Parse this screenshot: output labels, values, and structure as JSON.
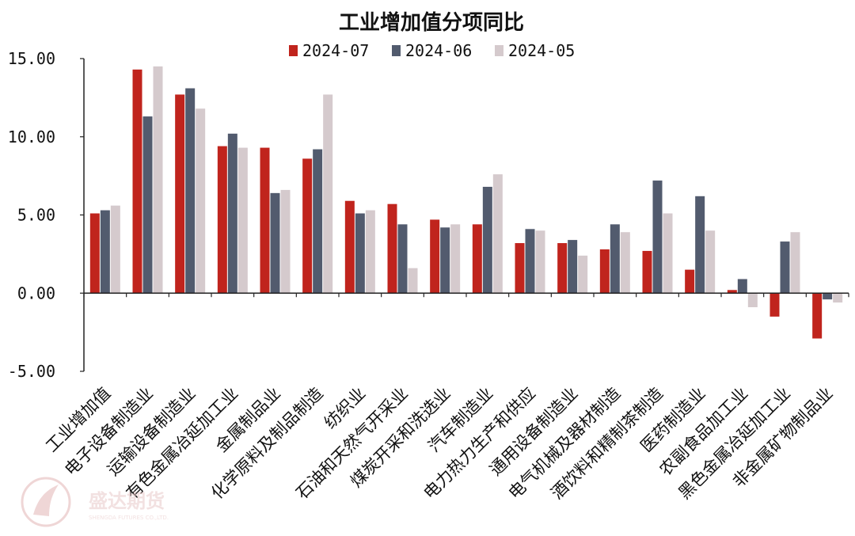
{
  "chart_data": {
    "type": "bar",
    "title": "工业增加值分项同比",
    "categories": [
      "工业增加值",
      "电子设备制造业",
      "运输设备制造业",
      "有色金属冶延加工业",
      "金属制品业",
      "化学原料及制品制造",
      "纺织业",
      "石油和天然气开采业",
      "煤炭开采和洗选业",
      "汽车制造业",
      "电力热力生产和供应",
      "通用设备制造业",
      "电气机械及器材制造",
      "酒饮料和精制茶制造",
      "医药制造业",
      "农副食品加工业",
      "黑色金属冶延加工业",
      "非金属矿物制品业"
    ],
    "series": [
      {
        "name": "2024-07",
        "color": "#c0241d",
        "values": [
          5.1,
          14.3,
          12.7,
          9.4,
          9.3,
          8.6,
          5.9,
          5.7,
          4.7,
          4.4,
          3.2,
          3.2,
          2.8,
          2.7,
          1.5,
          0.2,
          -1.5,
          -2.9
        ]
      },
      {
        "name": "2024-06",
        "color": "#525b6e",
        "values": [
          5.3,
          11.3,
          13.1,
          10.2,
          6.4,
          9.2,
          5.1,
          4.4,
          4.2,
          6.8,
          4.1,
          3.4,
          4.4,
          7.2,
          6.2,
          0.9,
          3.3,
          -0.4
        ]
      },
      {
        "name": "2024-05",
        "color": "#d5cacd",
        "values": [
          5.6,
          14.5,
          11.8,
          9.3,
          6.6,
          12.7,
          5.3,
          1.6,
          4.4,
          7.6,
          4.0,
          2.4,
          3.9,
          5.1,
          4.0,
          -0.9,
          3.9,
          -0.6
        ]
      }
    ],
    "yticks": [
      "15.00",
      "10.00",
      "5.00",
      "0.00",
      "-5.00"
    ],
    "ylim": [
      -5,
      15
    ],
    "legend_position": "top",
    "grid": false
  },
  "watermark": {
    "name": "盛达期货",
    "sub": "SHENGDA FUTURES CO.,LTD."
  }
}
